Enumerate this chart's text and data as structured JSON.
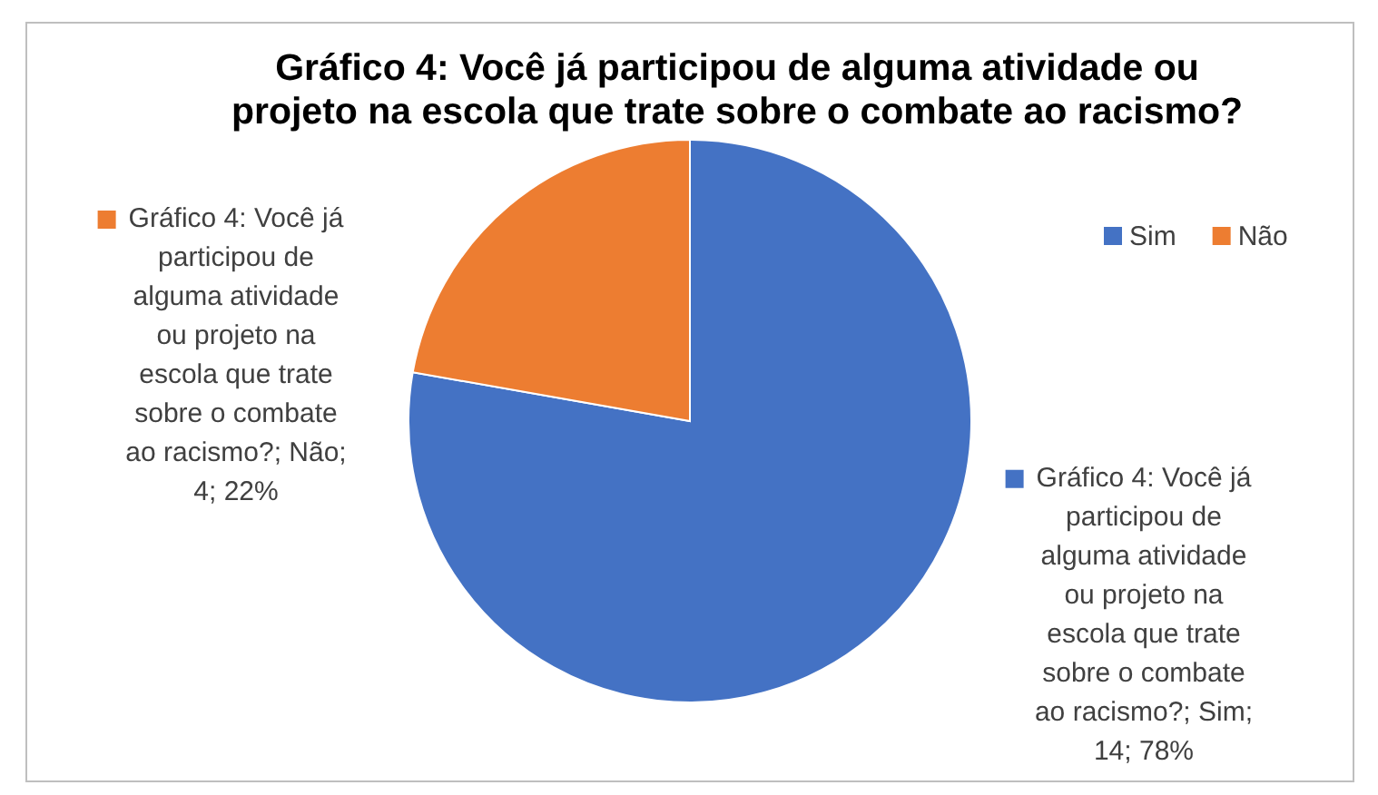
{
  "chart_data": {
    "type": "pie",
    "title": "Gráfico 4: Você já participou de alguma atividade ou projeto na escola que trate sobre o combate ao racismo?",
    "categories": [
      "Sim",
      "Não"
    ],
    "values": [
      14,
      4
    ],
    "colors": [
      "#4472c4",
      "#ed7d31"
    ],
    "value_labels": [
      "Gráfico 4: Você já participou de alguma atividade ou projeto na escola que trate sobre o combate ao racismo?; Sim; 14; 78%",
      "Gráfico 4: Você já participou de alguma atividade ou projeto na escola que trate sobre o combate ao racismo?; Não; 4; 22%"
    ],
    "legend": "top right"
  }
}
